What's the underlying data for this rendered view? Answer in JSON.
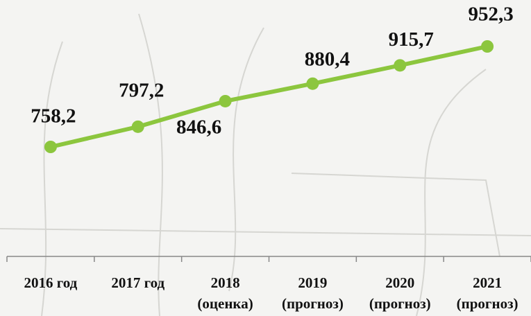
{
  "chart_data": {
    "type": "line",
    "categories": [
      "2016 год",
      "2017 год",
      "2018\n(оценка)",
      "2019\n(прогноз)",
      "2020\n(прогноз)",
      "2021\n(прогноз)"
    ],
    "values": [
      758.2,
      797.2,
      846.6,
      880.4,
      915.7,
      952.3
    ],
    "value_labels": [
      "758,2",
      "797,2",
      "846,6",
      "880,4",
      "915,7",
      "952,3"
    ],
    "color": "#8cc63e"
  }
}
